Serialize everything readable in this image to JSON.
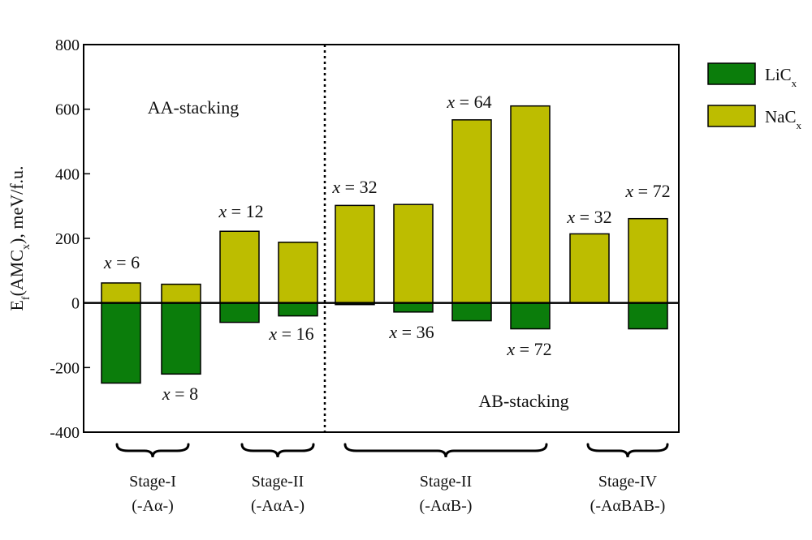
{
  "chart_data": {
    "type": "bar",
    "ylabel": {
      "main": "E",
      "sub1": "f",
      "mid": "(AMC",
      "sub2": "x",
      "rest": "), meV/f.u."
    },
    "ylim": [
      -400,
      800
    ],
    "yticks": [
      -400,
      -200,
      0,
      200,
      400,
      600,
      800
    ],
    "grid": false,
    "legend_position": "top-right, outside plot",
    "series": [
      {
        "name": {
          "base": "LiC",
          "sub": "x"
        },
        "color": "#0b7d0b",
        "values": [
          -248,
          -220,
          -60,
          -40,
          -5,
          -28,
          -55,
          -80,
          null,
          -80
        ]
      },
      {
        "name": {
          "base": "NaC",
          "sub": "x"
        },
        "color": "#bdbd00",
        "values": [
          62,
          58,
          222,
          188,
          302,
          305,
          567,
          610,
          214,
          261
        ]
      }
    ],
    "annotations": [
      {
        "text": "x = 6",
        "bar": 0
      },
      {
        "text": "x = 8",
        "bar": 1
      },
      {
        "text": "x = 12",
        "bar": 2
      },
      {
        "text": "x = 16",
        "bar": 3
      },
      {
        "text": "x = 32",
        "bar": 4
      },
      {
        "text": "x = 36",
        "bar": 5
      },
      {
        "text": "x = 64",
        "bar": 6
      },
      {
        "text": "x = 72",
        "bar": 7
      },
      {
        "text": "x = 32",
        "bar": 8
      },
      {
        "text": "x = 72",
        "bar": 9
      }
    ],
    "region_labels": [
      "AA-stacking",
      "AB-stacking"
    ],
    "groups": [
      {
        "label": "Stage-I",
        "sublabel": "(-Aα-)",
        "bars": [
          0,
          1
        ]
      },
      {
        "label": "Stage-II",
        "sublabel": "(-AαA-)",
        "bars": [
          2,
          3
        ]
      },
      {
        "label": "Stage-II",
        "sublabel": "(-AαB-)",
        "bars": [
          4,
          5,
          6,
          7
        ]
      },
      {
        "label": "Stage-IV",
        "sublabel": "(-AαBAB-)",
        "bars": [
          8,
          9
        ]
      }
    ]
  }
}
